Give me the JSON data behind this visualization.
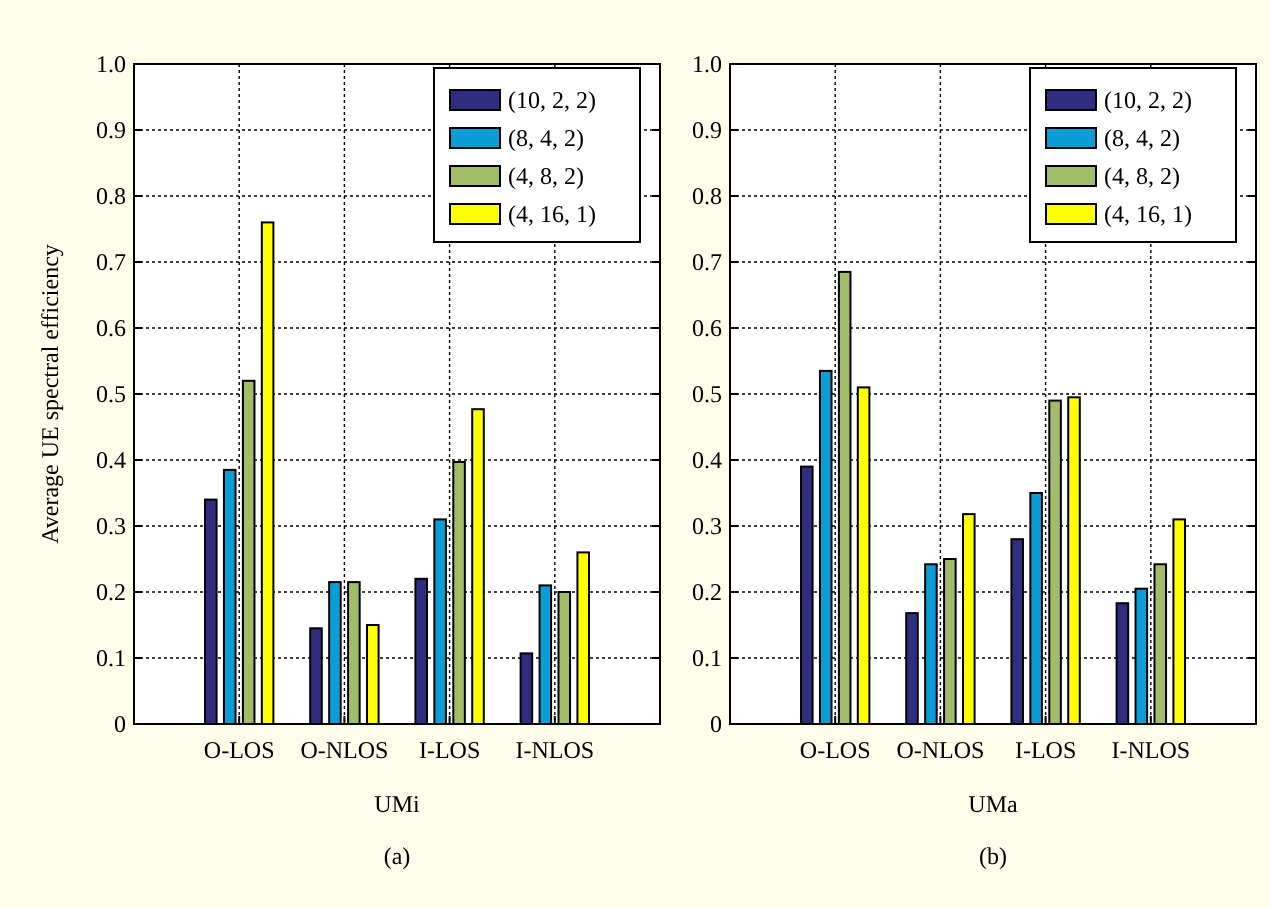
{
  "chart_data": [
    {
      "type": "bar",
      "categories": [
        "O-LOS",
        "O-NLOS",
        "I-LOS",
        "I-NLOS"
      ],
      "xlabel": "UMi",
      "ylabel": "Average UE spectral efficiency",
      "annotations": [
        "(a)"
      ],
      "ylim": [
        0,
        1
      ],
      "yticks": [
        0,
        0.1,
        0.2,
        0.3,
        0.4,
        0.5,
        0.6,
        0.7,
        0.8,
        0.9,
        {
          "value": 1,
          "label": "1.0"
        }
      ],
      "grid": true,
      "legend": "top right",
      "series": [
        {
          "name": "(10, 2, 2)",
          "color": "#302c80",
          "values": [
            0.34,
            0.145,
            0.22,
            0.107
          ]
        },
        {
          "name": "(8, 4, 2)",
          "color": "#0b9ed6",
          "values": [
            0.385,
            0.215,
            0.31,
            0.21
          ]
        },
        {
          "name": "(4, 8, 2)",
          "color": "#a2bd6a",
          "values": [
            0.52,
            0.215,
            0.397,
            0.2
          ]
        },
        {
          "name": "(4, 16, 1)",
          "color": "#ffff00",
          "values": [
            0.76,
            0.15,
            0.477,
            0.26
          ]
        }
      ]
    },
    {
      "type": "bar",
      "categories": [
        "O-LOS",
        "O-NLOS",
        "I-LOS",
        "I-NLOS"
      ],
      "xlabel": "UMa",
      "annotations": [
        "(b)"
      ],
      "ylim": [
        0,
        1
      ],
      "yticks": [
        0,
        0.1,
        0.2,
        0.3,
        0.4,
        0.5,
        0.6,
        0.7,
        0.8,
        0.9,
        {
          "value": 1,
          "label": "1.0"
        }
      ],
      "grid": true,
      "legend": "top right",
      "series": [
        {
          "name": "(10, 2, 2)",
          "color": "#302c80",
          "values": [
            0.39,
            0.168,
            0.28,
            0.183
          ]
        },
        {
          "name": "(8, 4, 2)",
          "color": "#0b9ed6",
          "values": [
            0.535,
            0.242,
            0.35,
            0.205
          ]
        },
        {
          "name": "(4, 8, 2)",
          "color": "#a2bd6a",
          "values": [
            0.685,
            0.25,
            0.49,
            0.242
          ]
        },
        {
          "name": "(4, 16, 1)",
          "color": "#ffff00",
          "values": [
            0.51,
            0.318,
            0.495,
            0.31
          ]
        }
      ]
    }
  ]
}
